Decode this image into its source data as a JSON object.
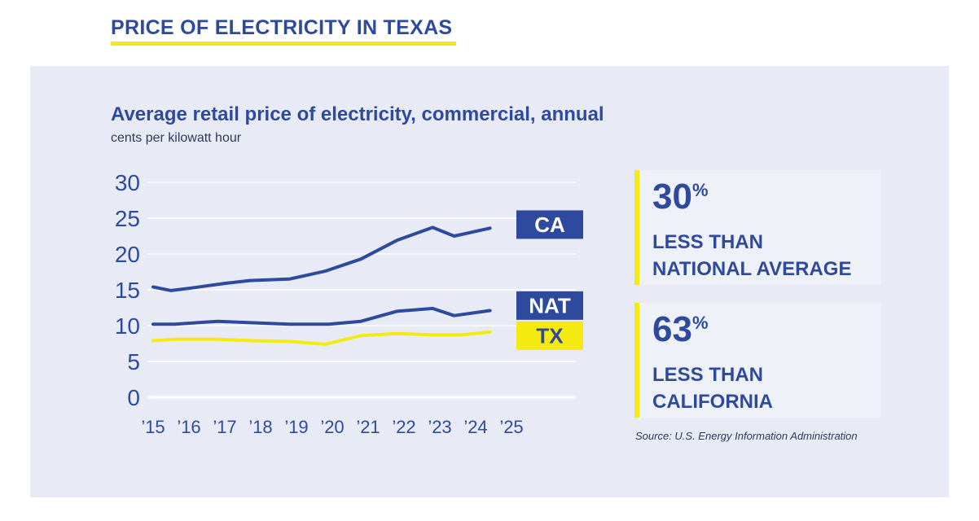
{
  "header": {
    "title": "PRICE OF ELECTRICITY IN TEXAS"
  },
  "chart_data": {
    "type": "line",
    "title": "Average retail price of electricity, commercial, annual",
    "subtitle": "cents per kilowatt hour",
    "xlabel": "",
    "ylabel": "",
    "x": [
      "’15",
      "’16",
      "’17",
      "’18",
      "’19",
      "’20",
      "’21",
      "’22",
      "’23",
      "’24",
      "’25"
    ],
    "x_ticks": [
      "’15",
      "’16",
      "’17",
      "’18",
      "’19",
      "’20",
      "’21",
      "’22",
      "’23",
      "’24",
      "’25"
    ],
    "y_ticks": [
      "0",
      "5",
      "10",
      "15",
      "20",
      "25",
      "30"
    ],
    "ylim": [
      0,
      30
    ],
    "grid": true,
    "series": [
      {
        "name": "CA",
        "color": "#2e4a9e",
        "label_bg": "#2e4a9e",
        "label_fg": "#ffffff",
        "x": [
          2015,
          2015.5,
          2016,
          2017,
          2017.7,
          2018.8,
          2019.8,
          2020.8,
          2021.8,
          2022.8,
          2023.4,
          2024.4
        ],
        "values": [
          15.4,
          14.9,
          15.2,
          15.9,
          16.3,
          16.5,
          17.6,
          19.3,
          21.9,
          23.7,
          22.5,
          23.6
        ]
      },
      {
        "name": "NAT",
        "color": "#2e4a9e",
        "label_bg": "#2e4a9e",
        "label_fg": "#ffffff",
        "x": [
          2015,
          2015.6,
          2016.8,
          2017.8,
          2018.8,
          2019.9,
          2020.8,
          2021.8,
          2022.8,
          2023.4,
          2024.4
        ],
        "values": [
          10.2,
          10.2,
          10.6,
          10.4,
          10.2,
          10.2,
          10.6,
          12.0,
          12.4,
          11.4,
          12.1
        ]
      },
      {
        "name": "TX",
        "color": "#f4ea12",
        "label_bg": "#f4ea12",
        "label_fg": "#2e4a9e",
        "x": [
          2015,
          2015.6,
          2016.8,
          2017.8,
          2018.8,
          2019.8,
          2020.8,
          2021.8,
          2022.8,
          2023.6,
          2024.4
        ],
        "values": [
          7.9,
          8.1,
          8.1,
          7.9,
          7.8,
          7.4,
          8.6,
          8.9,
          8.7,
          8.7,
          9.1
        ]
      }
    ]
  },
  "callouts": [
    {
      "figure": "30",
      "suffix": "%",
      "line1": "LESS THAN",
      "line2": "NATIONAL AVERAGE"
    },
    {
      "figure": "63",
      "suffix": "%",
      "line1": "LESS THAN",
      "line2": "CALIFORNIA"
    }
  ],
  "source": "Source: U.S. Energy Information Administration",
  "colors": {
    "brand_blue": "#2e4a9e",
    "accent_yellow": "#f4ea12",
    "panel_bg": "#e8ebf5"
  }
}
